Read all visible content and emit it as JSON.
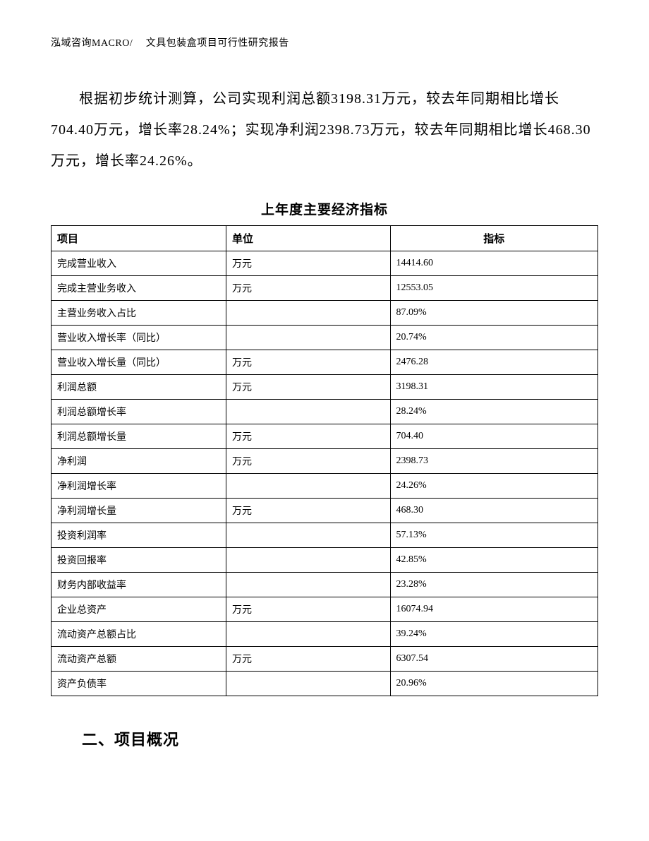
{
  "header": "泓域咨询MACRO/　 文具包装盒项目可行性研究报告",
  "paragraph": "根据初步统计测算，公司实现利润总额3198.31万元，较去年同期相比增长704.40万元，增长率28.24%；实现净利润2398.73万元，较去年同期相比增长468.30万元，增长率24.26%。",
  "table": {
    "title": "上年度主要经济指标",
    "columns": [
      "项目",
      "单位",
      "指标"
    ],
    "rows": [
      [
        "完成营业收入",
        "万元",
        "14414.60"
      ],
      [
        "完成主营业务收入",
        "万元",
        "12553.05"
      ],
      [
        "主营业务收入占比",
        "",
        "87.09%"
      ],
      [
        "营业收入增长率（同比）",
        "",
        "20.74%"
      ],
      [
        "营业收入增长量（同比）",
        "万元",
        "2476.28"
      ],
      [
        "利润总额",
        "万元",
        "3198.31"
      ],
      [
        "利润总额增长率",
        "",
        "28.24%"
      ],
      [
        "利润总额增长量",
        "万元",
        "704.40"
      ],
      [
        "净利润",
        "万元",
        "2398.73"
      ],
      [
        "净利润增长率",
        "",
        "24.26%"
      ],
      [
        "净利润增长量",
        "万元",
        "468.30"
      ],
      [
        "投资利润率",
        "",
        "57.13%"
      ],
      [
        "投资回报率",
        "",
        "42.85%"
      ],
      [
        "财务内部收益率",
        "",
        "23.28%"
      ],
      [
        "企业总资产",
        "万元",
        "16074.94"
      ],
      [
        "流动资产总额占比",
        "",
        "39.24%"
      ],
      [
        "流动资产总额",
        "万元",
        "6307.54"
      ],
      [
        "资产负债率",
        "",
        "20.96%"
      ]
    ]
  },
  "section_heading": "二、项目概况"
}
